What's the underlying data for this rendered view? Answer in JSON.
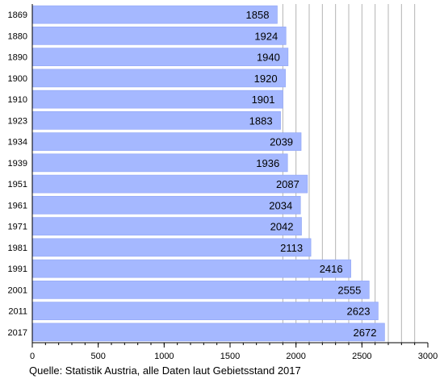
{
  "chart_data": {
    "type": "bar",
    "orientation": "horizontal",
    "categories": [
      "1869",
      "1880",
      "1890",
      "1900",
      "1910",
      "1923",
      "1934",
      "1939",
      "1951",
      "1961",
      "1971",
      "1981",
      "1991",
      "2001",
      "2011",
      "2017"
    ],
    "values": [
      1858,
      1924,
      1940,
      1920,
      1901,
      1883,
      2039,
      1936,
      2087,
      2034,
      2042,
      2113,
      2416,
      2555,
      2623,
      2672
    ],
    "xlim": [
      0,
      3000
    ],
    "xticks": [
      0,
      500,
      1000,
      1500,
      2000,
      2500,
      3000
    ],
    "grid": "vertical lines from 1900 to 2900 every 100",
    "bar_color": "#a5b8ff",
    "bar_edge_color": "#8ea4f5",
    "grid_color": "#b4b4b4"
  },
  "source": "Quelle: Statistik Austria, alle Daten laut Gebietsstand 2017"
}
